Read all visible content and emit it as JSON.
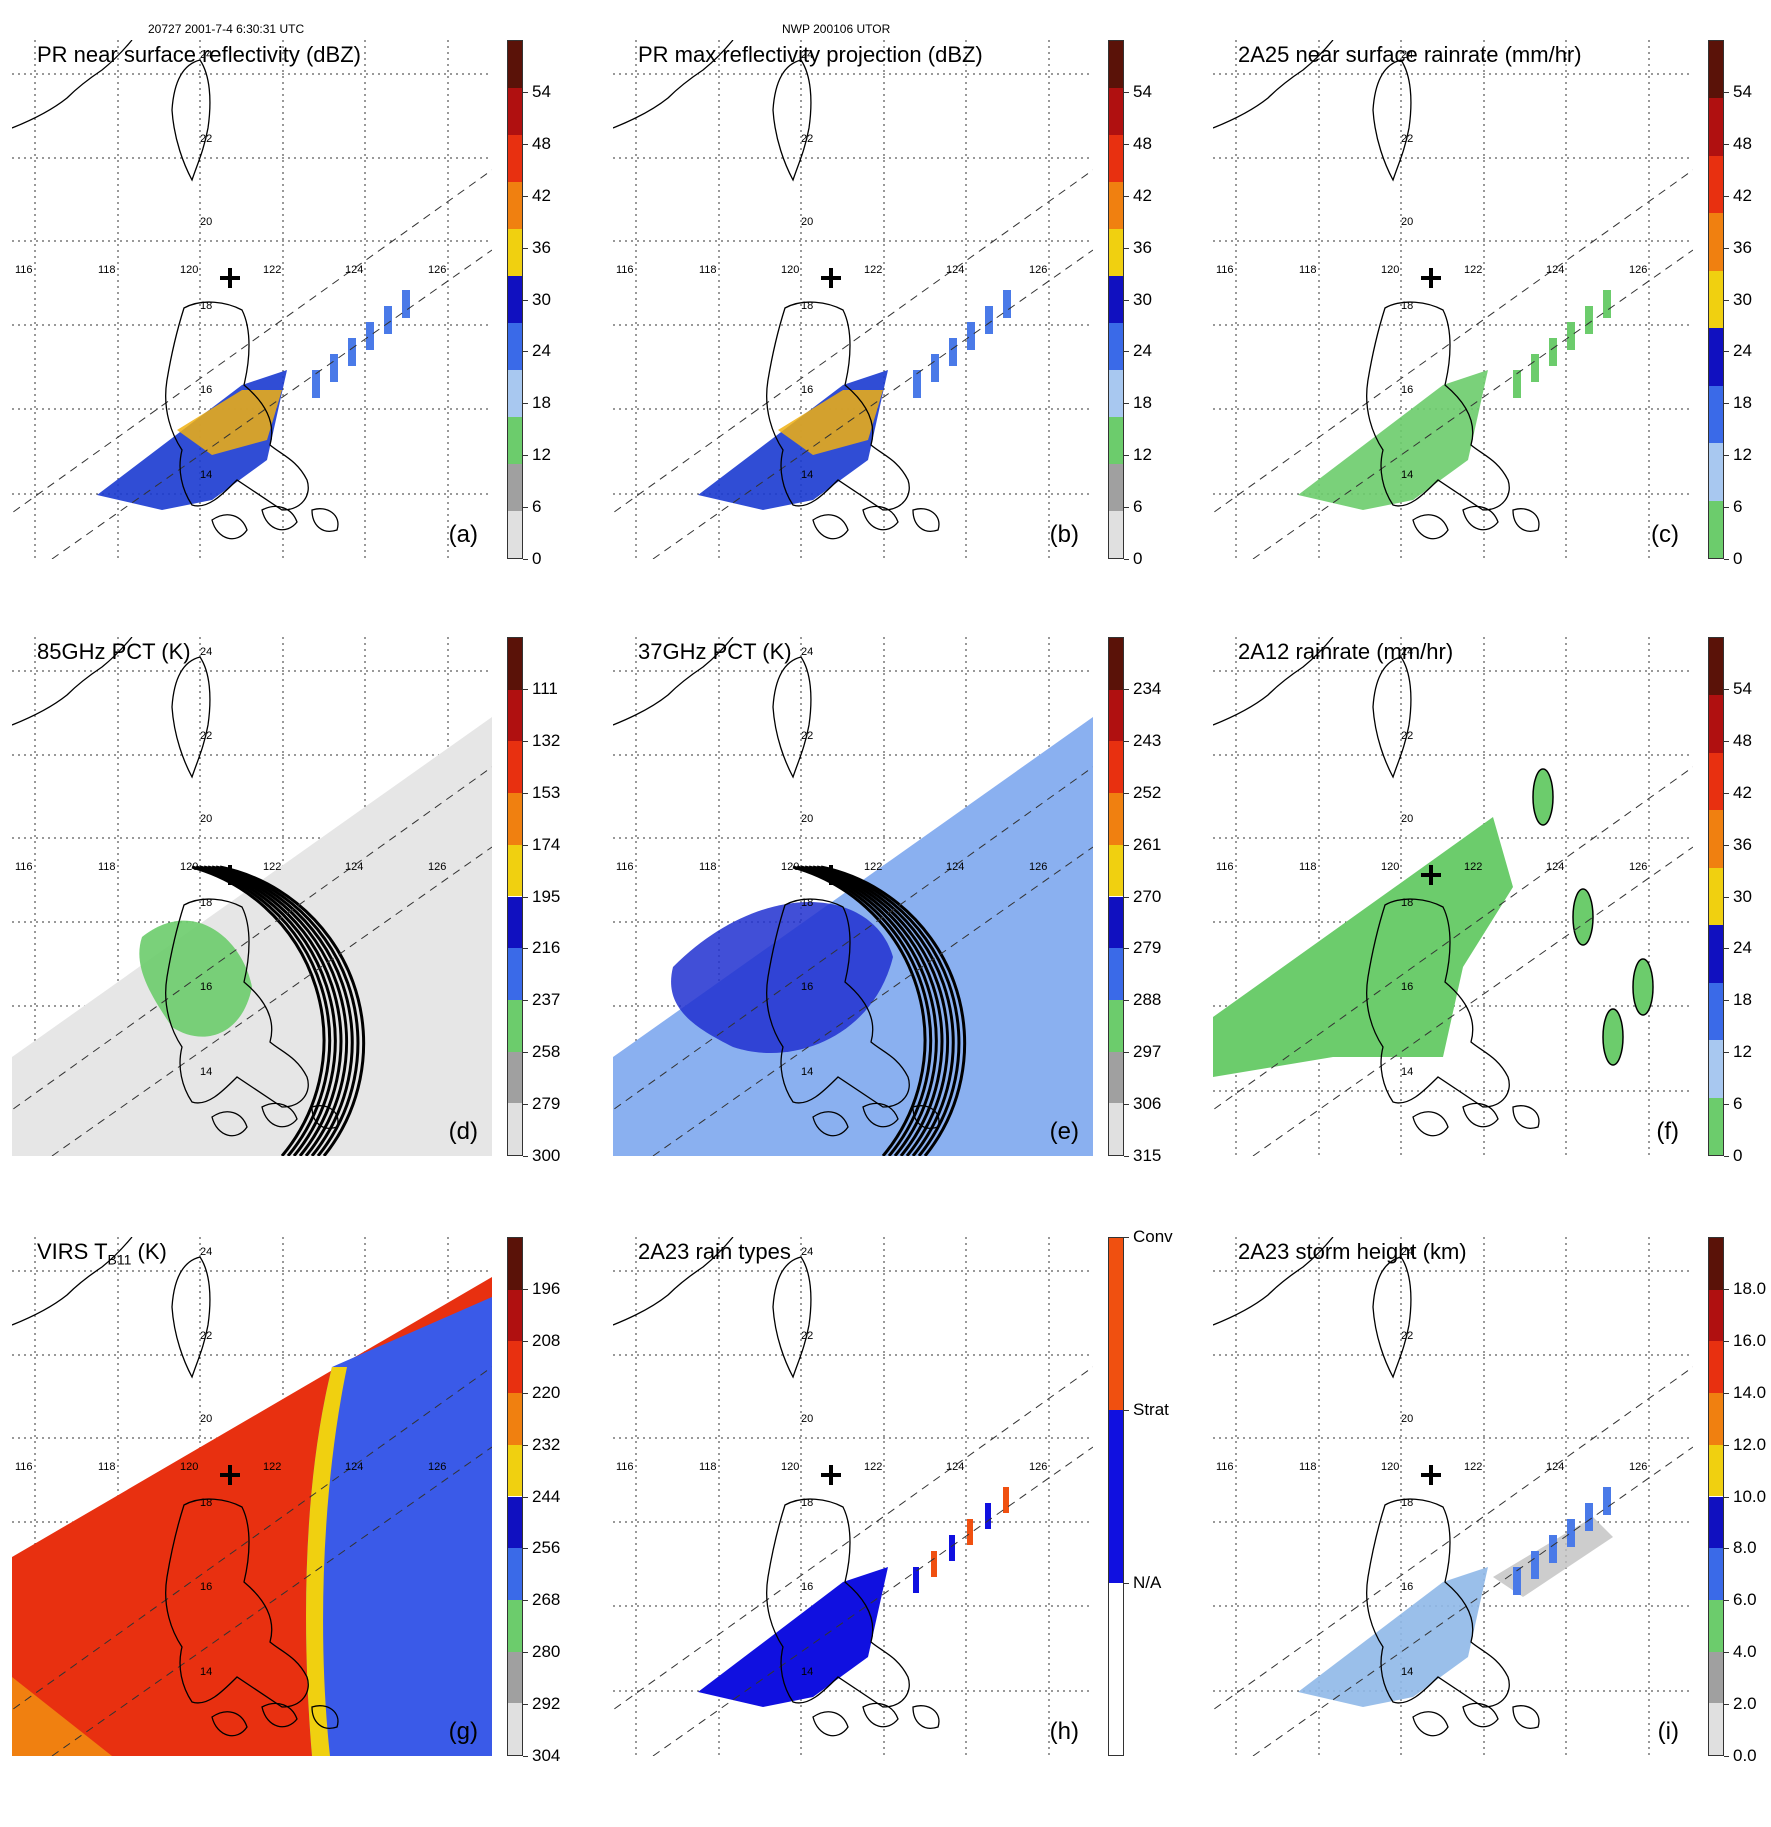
{
  "header": {
    "left": "20727 2001-7-4 6:30:31 UTC",
    "center": "NWP 200106 UTOR"
  },
  "grid": {
    "lon_labels": [
      "116",
      "118",
      "120",
      "122",
      "124",
      "126"
    ],
    "lat_labels": [
      "24",
      "22",
      "20",
      "18",
      "16",
      "14"
    ]
  },
  "panels": [
    {
      "id": "a",
      "title": "PR near surface reflectivity (dBZ)",
      "label": "(a)",
      "ticks": [
        "54",
        "48",
        "42",
        "36",
        "30",
        "24",
        "18",
        "12",
        "6",
        "0"
      ],
      "colors": [
        "#5a1208",
        "#b01010",
        "#e83010",
        "#f08010",
        "#f0d010",
        "#1010c0",
        "#3a6ae8",
        "#a8c8f0",
        "#6ccc6c",
        "#a0a0a0",
        "#e0e0e0"
      ]
    },
    {
      "id": "b",
      "title": "PR max reflectivity projection (dBZ)",
      "label": "(b)",
      "ticks": [
        "54",
        "48",
        "42",
        "36",
        "30",
        "24",
        "18",
        "12",
        "6",
        "0"
      ],
      "colors": [
        "#5a1208",
        "#b01010",
        "#e83010",
        "#f08010",
        "#f0d010",
        "#1010c0",
        "#3a6ae8",
        "#a8c8f0",
        "#6ccc6c",
        "#a0a0a0",
        "#e0e0e0"
      ]
    },
    {
      "id": "c",
      "title": "2A25 near surface rainrate (mm/hr)",
      "label": "(c)",
      "ticks": [
        "54",
        "48",
        "42",
        "36",
        "30",
        "24",
        "18",
        "12",
        "6",
        "0"
      ],
      "colors": [
        "#5a1208",
        "#b01010",
        "#e83010",
        "#f08010",
        "#f0d010",
        "#1010c0",
        "#3a6ae8",
        "#a8c8f0",
        "#6ccc6c"
      ]
    },
    {
      "id": "d",
      "title": "85GHz PCT (K)",
      "label": "(d)",
      "ticks": [
        "111",
        "132",
        "153",
        "174",
        "195",
        "216",
        "237",
        "258",
        "279",
        "300"
      ],
      "colors": [
        "#5a1208",
        "#b01010",
        "#e83010",
        "#f08010",
        "#f0d010",
        "#1010c0",
        "#3a6ae8",
        "#6ccc6c",
        "#a0a0a0",
        "#e0e0e0"
      ]
    },
    {
      "id": "e",
      "title": "37GHz PCT (K)",
      "label": "(e)",
      "ticks": [
        "234",
        "243",
        "252",
        "261",
        "270",
        "279",
        "288",
        "297",
        "306",
        "315"
      ],
      "colors": [
        "#5a1208",
        "#b01010",
        "#e83010",
        "#f08010",
        "#f0d010",
        "#1010c0",
        "#3a6ae8",
        "#6ccc6c",
        "#a0a0a0",
        "#e0e0e0"
      ]
    },
    {
      "id": "f",
      "title": "2A12 rainrate (mm/hr)",
      "label": "(f)",
      "ticks": [
        "54",
        "48",
        "42",
        "36",
        "30",
        "24",
        "18",
        "12",
        "6",
        "0"
      ],
      "colors": [
        "#5a1208",
        "#b01010",
        "#e83010",
        "#f08010",
        "#f0d010",
        "#1010c0",
        "#3a6ae8",
        "#a8c8f0",
        "#6ccc6c"
      ]
    },
    {
      "id": "g",
      "title": "VIRS T",
      "title_sub": "B11",
      "title_end": " (K)",
      "label": "(g)",
      "ticks": [
        "196",
        "208",
        "220",
        "232",
        "244",
        "256",
        "268",
        "280",
        "292",
        "304"
      ],
      "colors": [
        "#5a1208",
        "#b01010",
        "#e83010",
        "#f08010",
        "#f0d010",
        "#1010c0",
        "#3a6ae8",
        "#6ccc6c",
        "#a0a0a0",
        "#e0e0e0"
      ]
    },
    {
      "id": "h",
      "title": "2A23 rain types",
      "label": "(h)",
      "ticks": [
        "Conv",
        "Strat",
        "N/A"
      ],
      "colors": [
        "#f05010",
        "#1010e0",
        "#ffffff"
      ]
    },
    {
      "id": "i",
      "title": "2A23 storm height (km)",
      "label": "(i)",
      "ticks": [
        "18.0",
        "16.0",
        "14.0",
        "12.0",
        "10.0",
        "8.0",
        "6.0",
        "4.0",
        "2.0",
        "0.0"
      ],
      "colors": [
        "#5a1208",
        "#b01010",
        "#e83010",
        "#f08010",
        "#f0d010",
        "#1010c0",
        "#3a6ae8",
        "#6ccc6c",
        "#a0a0a0",
        "#e0e0e0"
      ]
    }
  ]
}
